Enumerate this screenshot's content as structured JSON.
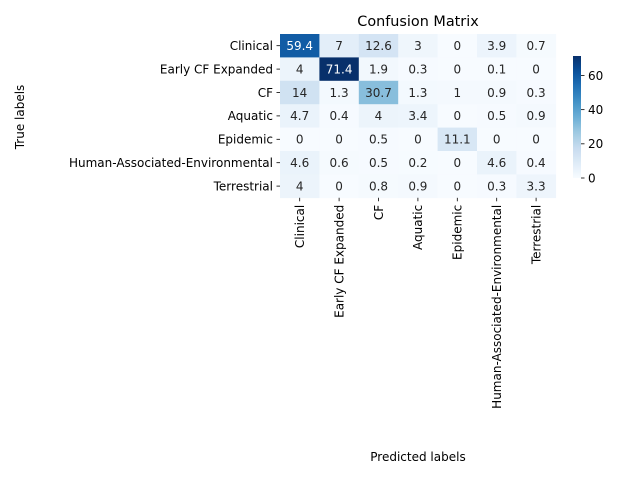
{
  "chart_data": {
    "type": "heatmap",
    "title": "Confusion Matrix",
    "xlabel": "Predicted labels",
    "ylabel": "True labels",
    "x_categories": [
      "Clinical",
      "Early CF Expanded",
      "CF",
      "Aquatic",
      "Epidemic",
      "Human-Associated-Environmental",
      "Terrestrial"
    ],
    "y_categories": [
      "Clinical",
      "Early CF Expanded",
      "CF",
      "Aquatic",
      "Epidemic",
      "Human-Associated-Environmental",
      "Terrestrial"
    ],
    "values": [
      [
        59.4,
        7,
        12.6,
        3,
        0,
        3.9,
        0.7
      ],
      [
        4,
        71.4,
        1.9,
        0.3,
        0,
        0.1,
        0
      ],
      [
        14,
        1.3,
        30.7,
        1.3,
        1,
        0.9,
        0.3
      ],
      [
        4.7,
        0.4,
        4,
        3.4,
        0,
        0.5,
        0.9
      ],
      [
        0,
        0,
        0.5,
        0,
        11.1,
        0,
        0
      ],
      [
        4.6,
        0.6,
        0.5,
        0.2,
        0,
        4.6,
        0.4
      ],
      [
        4,
        0,
        0.8,
        0.9,
        0,
        0.3,
        3.3
      ]
    ],
    "colormap": "Blues",
    "colorbar": {
      "range": [
        0,
        71.4
      ],
      "ticks": [
        0,
        20,
        40,
        60
      ]
    }
  }
}
